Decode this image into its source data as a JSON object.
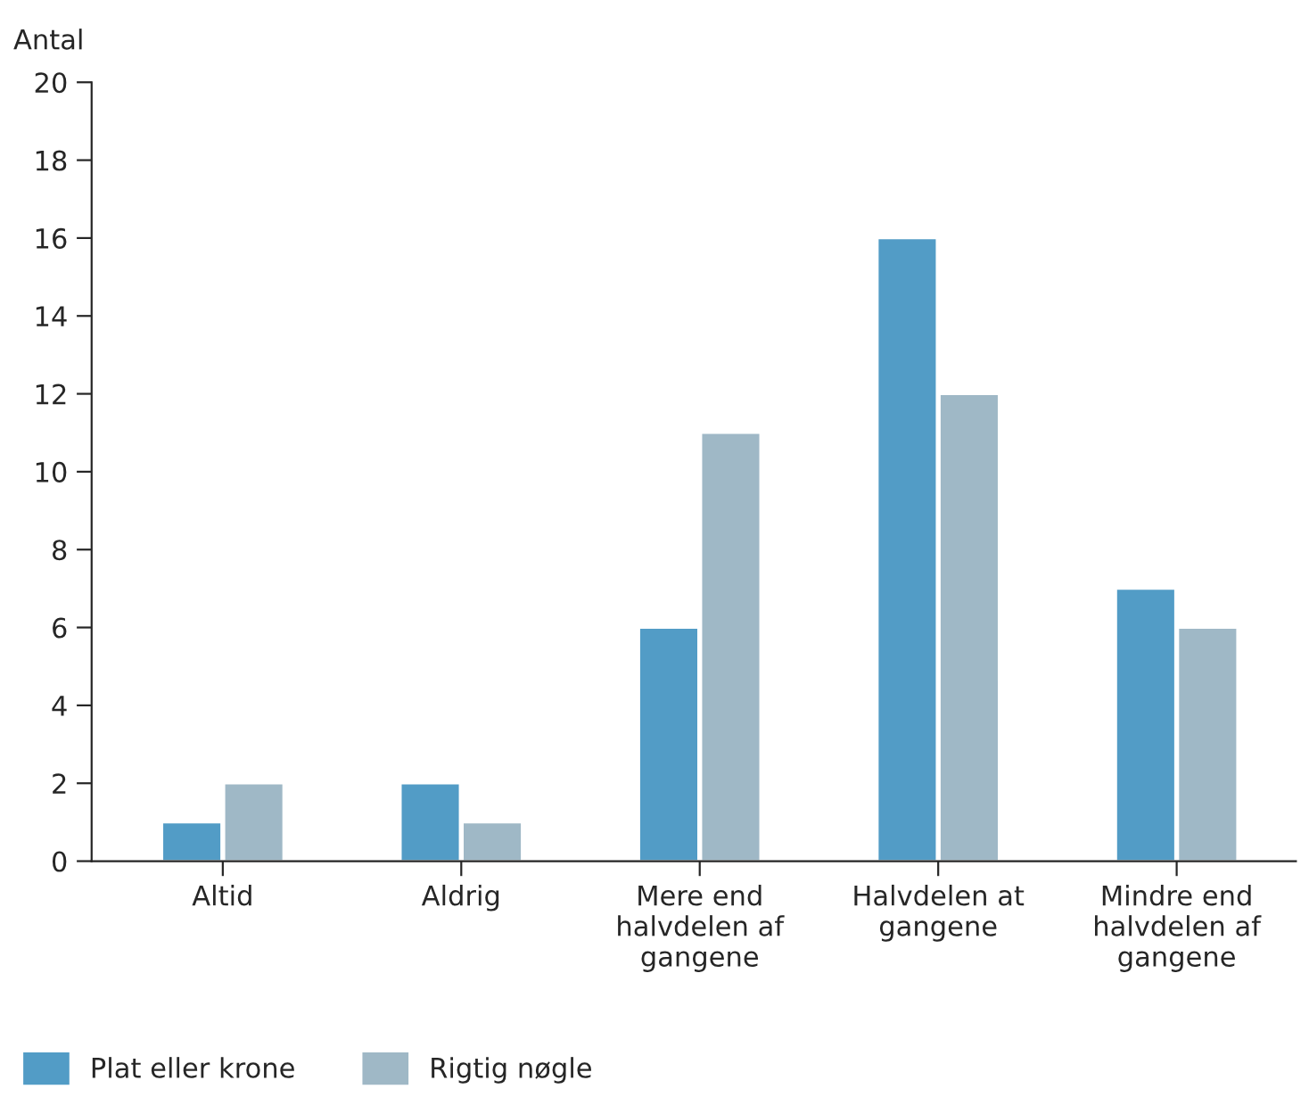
{
  "chart_data": {
    "type": "bar",
    "ylabel": "Antal",
    "categories": [
      "Altid",
      "Aldrig",
      "Mere end\nhalvdelen af\ngangene",
      "Halvdelen at\ngangene",
      "Mindre end\nhalvdelen af\ngangene"
    ],
    "series": [
      {
        "name": "Plat eller krone",
        "color": "#529cc6",
        "values": [
          1,
          2,
          6,
          16,
          7
        ]
      },
      {
        "name": "Rigtig nøgle",
        "color": "#9fb8c6",
        "values": [
          2,
          1,
          11,
          12,
          6
        ]
      }
    ],
    "ylim": [
      0,
      20
    ],
    "yticks": [
      0,
      2,
      4,
      6,
      8,
      10,
      12,
      14,
      16,
      18,
      20
    ],
    "grid": false,
    "legend": "bottom left"
  }
}
